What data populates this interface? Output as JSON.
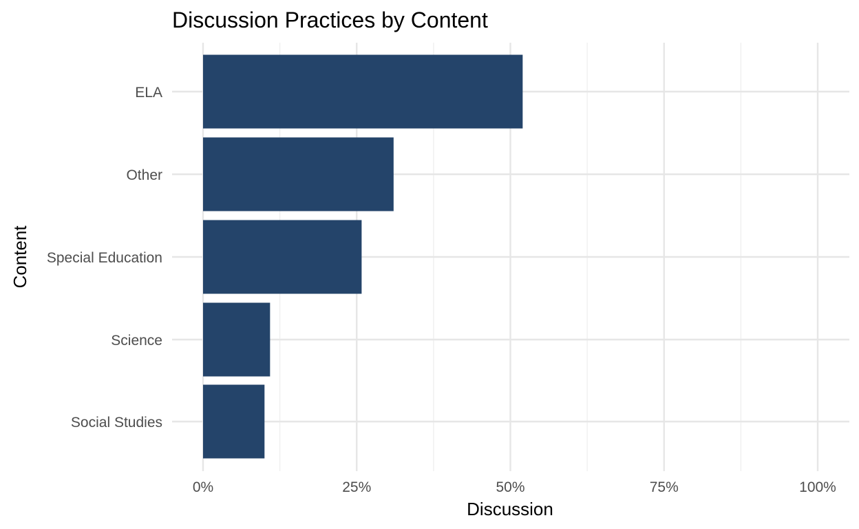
{
  "chart_data": {
    "type": "bar",
    "orientation": "horizontal",
    "title": "Discussion Practices by Content",
    "xlabel": "Discussion",
    "ylabel": "Content",
    "categories": [
      "ELA",
      "Other",
      "Special Education",
      "Science",
      "Social Studies"
    ],
    "values": [
      0.52,
      0.31,
      0.258,
      0.109,
      0.1
    ],
    "xlim": [
      0,
      1
    ],
    "x_ticks": [
      0,
      0.25,
      0.5,
      0.75,
      1.0
    ],
    "x_tick_labels": [
      "0%",
      "25%",
      "50%",
      "75%",
      "100%"
    ],
    "bar_color": "#24446A",
    "grid": true,
    "legend": "none"
  }
}
